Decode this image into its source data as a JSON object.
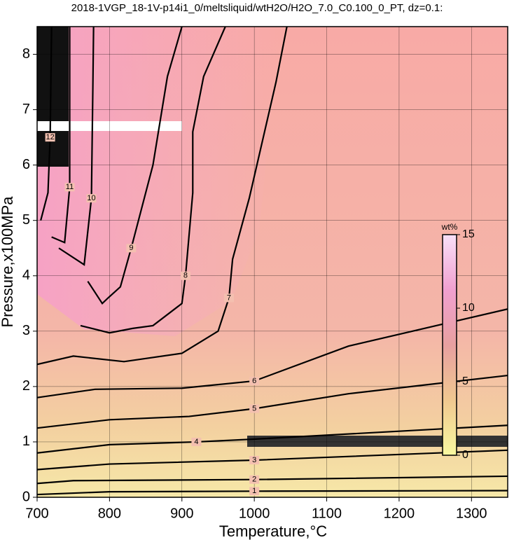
{
  "chart_data": {
    "type": "contour",
    "title": "2018-1VGP_18-1V-p14i1_0/meltsliquid/wtH2O/H2O_7.0_C0.100_0_PT, dz=0.1:",
    "xlabel": "Temperature,°C",
    "ylabel": "Pressure,x100MPa",
    "xlim": [
      700,
      1350
    ],
    "ylim": [
      0,
      8.5
    ],
    "xticks": [
      700,
      800,
      900,
      1000,
      1100,
      1200,
      1300
    ],
    "yticks": [
      0,
      1,
      2,
      3,
      4,
      5,
      6,
      7,
      8
    ],
    "grid": true,
    "series": [
      {
        "name": "1",
        "x": [
          700,
          800,
          1000,
          1350
        ],
        "y": [
          0.05,
          0.1,
          0.11,
          0.12
        ]
      },
      {
        "name": "2",
        "x": [
          700,
          750,
          1000,
          1350
        ],
        "y": [
          0.25,
          0.3,
          0.32,
          0.38
        ]
      },
      {
        "name": "3",
        "x": [
          700,
          800,
          1000,
          1350
        ],
        "y": [
          0.5,
          0.6,
          0.67,
          0.85
        ]
      },
      {
        "name": "4",
        "x": [
          700,
          800,
          920,
          1000,
          1350
        ],
        "y": [
          0.8,
          0.95,
          1.0,
          1.05,
          1.3
        ]
      },
      {
        "name": "5",
        "x": [
          700,
          800,
          910,
          1000,
          1130,
          1350
        ],
        "y": [
          1.25,
          1.4,
          1.46,
          1.6,
          1.87,
          2.2
        ]
      },
      {
        "name": "6",
        "x": [
          700,
          780,
          900,
          1000,
          1130,
          1350
        ],
        "y": [
          1.8,
          1.95,
          1.97,
          2.1,
          2.73,
          3.4
        ]
      },
      {
        "name": "7",
        "x": [
          700,
          750,
          820,
          900,
          950,
          965,
          970,
          993,
          1030,
          1045
        ],
        "y": [
          2.4,
          2.55,
          2.45,
          2.6,
          3.0,
          3.6,
          4.3,
          5.4,
          7.5,
          8.5
        ]
      },
      {
        "name": "8",
        "x": [
          760,
          800,
          832,
          860,
          900,
          905,
          915,
          915,
          930,
          960
        ],
        "y": [
          3.1,
          2.97,
          3.05,
          3.1,
          3.5,
          4.0,
          5.5,
          6.6,
          7.6,
          8.5
        ]
      },
      {
        "name": "9",
        "x": [
          770,
          790,
          798,
          815,
          830,
          860,
          880,
          900
        ],
        "y": [
          3.9,
          3.5,
          3.6,
          3.8,
          4.5,
          6.0,
          7.6,
          8.5
        ]
      },
      {
        "name": "10",
        "x": [
          730,
          765,
          775,
          777,
          778
        ],
        "y": [
          4.5,
          4.2,
          5.4,
          7.4,
          8.5
        ]
      },
      {
        "name": "11",
        "x": [
          720,
          738,
          745,
          745
        ],
        "y": [
          4.7,
          4.6,
          5.6,
          8.5
        ]
      },
      {
        "name": "12",
        "x": [
          705,
          715,
          718,
          720
        ],
        "y": [
          5.0,
          5.5,
          6.5,
          8.5
        ]
      }
    ],
    "colorbar": {
      "label": "wt%",
      "clim": [
        0,
        15
      ],
      "ticks": [
        0,
        5,
        10,
        15
      ],
      "colors": [
        "#f8f8a0",
        "#f0c890",
        "#e8a0a0",
        "#f0a0d0",
        "#f8e0f8"
      ]
    }
  }
}
